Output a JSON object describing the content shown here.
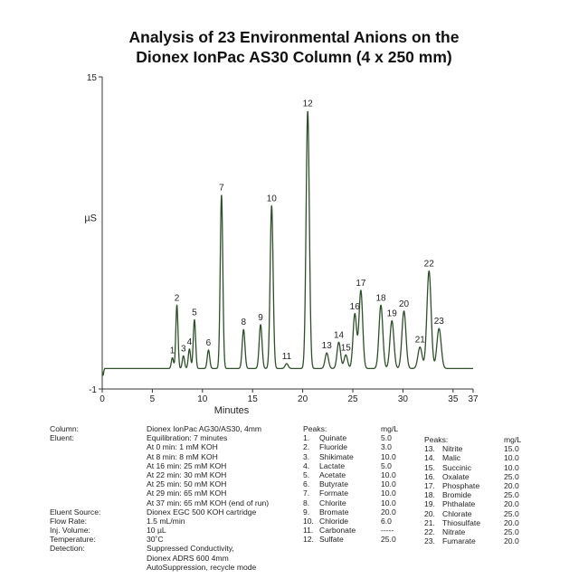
{
  "title_line1": "Analysis of 23 Environmental Anions on the",
  "title_line2": "Dionex IonPac AS30 Column (4 x 250 mm)",
  "chart_data": {
    "type": "line",
    "title": "Analysis of 23 Environmental Anions on the Dionex IonPac AS30 Column (4 x 250 mm)",
    "xlabel": "Minutes",
    "ylabel": "µS",
    "xlim": [
      0,
      37
    ],
    "ylim": [
      -1,
      15
    ],
    "x_ticks": [
      0,
      5,
      10,
      15,
      20,
      25,
      30,
      35,
      37
    ],
    "y_ticks": [
      -1,
      15
    ],
    "grid": false,
    "line_color": "#2f4f2a",
    "baseline": 0.05,
    "peaks": [
      {
        "label": "1",
        "time": 7.0,
        "height": 0.55
      },
      {
        "label": "2",
        "time": 7.45,
        "height": 3.25
      },
      {
        "label": "3",
        "time": 8.1,
        "height": 0.65
      },
      {
        "label": "4",
        "time": 8.7,
        "height": 1.0
      },
      {
        "label": "5",
        "time": 9.2,
        "height": 2.5
      },
      {
        "label": "6",
        "time": 10.6,
        "height": 0.95
      },
      {
        "label": "7",
        "time": 11.9,
        "height": 8.9
      },
      {
        "label": "8",
        "time": 14.1,
        "height": 2.0
      },
      {
        "label": "9",
        "time": 15.8,
        "height": 2.25
      },
      {
        "label": "10",
        "time": 16.9,
        "height": 8.35
      },
      {
        "label": "11",
        "time": 18.4,
        "height": 0.25
      },
      {
        "label": "12",
        "time": 20.5,
        "height": 13.2
      },
      {
        "label": "13",
        "time": 22.4,
        "height": 0.8
      },
      {
        "label": "14",
        "time": 23.6,
        "height": 1.35
      },
      {
        "label": "15",
        "time": 24.3,
        "height": 0.7
      },
      {
        "label": "16",
        "time": 25.2,
        "height": 2.8
      },
      {
        "label": "17",
        "time": 25.8,
        "height": 4.0
      },
      {
        "label": "18",
        "time": 27.8,
        "height": 3.25
      },
      {
        "label": "19",
        "time": 28.9,
        "height": 2.45
      },
      {
        "label": "20",
        "time": 30.1,
        "height": 2.95
      },
      {
        "label": "21",
        "time": 31.7,
        "height": 1.1
      },
      {
        "label": "22",
        "time": 32.6,
        "height": 5.0
      },
      {
        "label": "23",
        "time": 33.6,
        "height": 2.05
      }
    ]
  },
  "conditions": [
    {
      "label": "Column:",
      "lines": [
        "Dionex IonPac AG30/AS30, 4mm"
      ]
    },
    {
      "label": "Eluent:",
      "lines": [
        "Equilibration: 7 minutes",
        "At 0 min: 1 mM KOH",
        "At 8 min: 8 mM KOH",
        "At 16 min: 25 mM KOH",
        "At 22 min: 30 mM KOH",
        "At 25 min: 50 mM KOH",
        "At 29 min: 65 mM KOH",
        "At 37 min: 65 mM KOH (end of run)"
      ]
    },
    {
      "label": "Eluent Source:",
      "lines": [
        "Dionex EGC 500 KOH cartridge"
      ]
    },
    {
      "label": "Flow Rate:",
      "lines": [
        "1.5 mL/min"
      ]
    },
    {
      "label": "Inj. Volume:",
      "lines": [
        "10 µL"
      ]
    },
    {
      "label": "Temperature:",
      "lines": [
        "30˚C"
      ]
    },
    {
      "label": "Detection:",
      "lines": [
        "Suppressed Conductivity,",
        "Dionex ADRS 600 4mm",
        "AutoSuppression, recycle mode"
      ]
    }
  ],
  "peaks_table_1": {
    "header": "Peaks:",
    "unit": "mg/L",
    "rows": [
      {
        "num": "1.",
        "name": "Quinate",
        "conc": "5.0"
      },
      {
        "num": "2.",
        "name": "Fluoride",
        "conc": "3.0"
      },
      {
        "num": "3.",
        "name": "Shikimate",
        "conc": "10.0"
      },
      {
        "num": "4.",
        "name": "Lactate",
        "conc": "5.0"
      },
      {
        "num": "5.",
        "name": "Acetate",
        "conc": "10.0"
      },
      {
        "num": "6.",
        "name": "Butyrate",
        "conc": "10.0"
      },
      {
        "num": "7.",
        "name": "Formate",
        "conc": "10.0"
      },
      {
        "num": "8.",
        "name": "Chlorite",
        "conc": "10.0"
      },
      {
        "num": "9.",
        "name": "Bromate",
        "conc": "20.0"
      },
      {
        "num": "10.",
        "name": "Chloride",
        "conc": "6.0"
      },
      {
        "num": "11.",
        "name": "Carbonate",
        "conc": "-----"
      },
      {
        "num": "12.",
        "name": "Sulfate",
        "conc": "25.0"
      }
    ]
  },
  "peaks_table_2": {
    "header": "Peaks:",
    "unit": "mg/L",
    "rows": [
      {
        "num": "13.",
        "name": "Nitrite",
        "conc": "15.0"
      },
      {
        "num": "14.",
        "name": "Malic",
        "conc": "10.0"
      },
      {
        "num": "15.",
        "name": "Succinic",
        "conc": "10.0"
      },
      {
        "num": "16.",
        "name": "Oxalate",
        "conc": "25.0"
      },
      {
        "num": "17.",
        "name": "Phosphate",
        "conc": "20.0"
      },
      {
        "num": "18.",
        "name": "Bromide",
        "conc": "25.0"
      },
      {
        "num": "19.",
        "name": "Phthalate",
        "conc": "20.0"
      },
      {
        "num": "20.",
        "name": "Chlorate",
        "conc": "25.0"
      },
      {
        "num": "21.",
        "name": "Thiosulfate",
        "conc": "20.0"
      },
      {
        "num": "22.",
        "name": "Nitrate",
        "conc": "25.0"
      },
      {
        "num": "23.",
        "name": "Fumarate",
        "conc": "20.0"
      }
    ]
  }
}
